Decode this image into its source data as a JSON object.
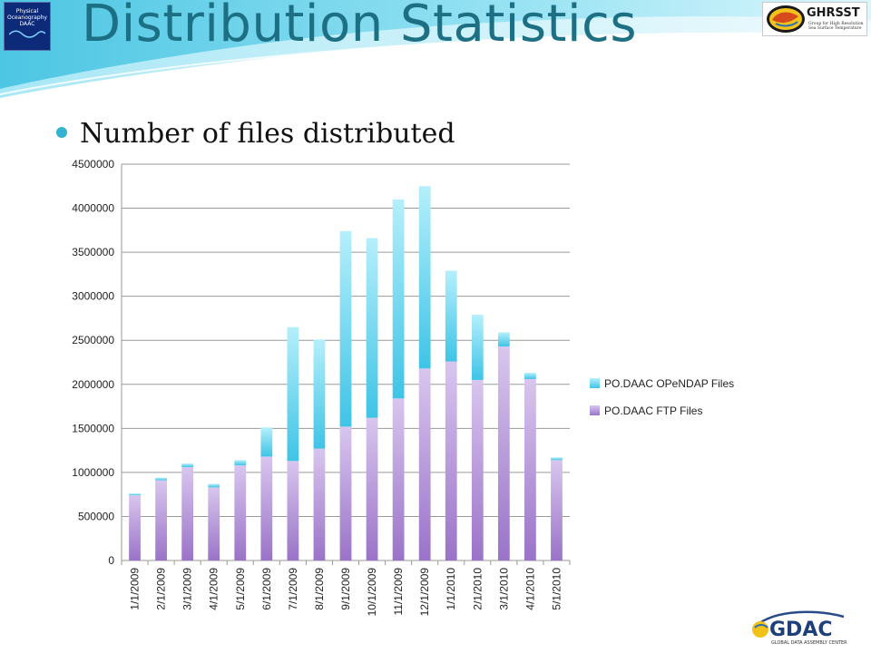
{
  "slide": {
    "title": "Distribution Statistics",
    "bullet": "Number of files distributed"
  },
  "logos": {
    "left_lines": [
      "Physical",
      "Oceanography",
      "DAAC"
    ],
    "right_name": "GHRSST",
    "right_sub": "Group for High Resolution Sea Surface Temperature",
    "bottom_name": "GDAC",
    "bottom_sub": "GLOBAL DATA ASSEMBLY CENTER"
  },
  "colors": {
    "title": "#1d6f83",
    "opendap_top": "#b5effb",
    "opendap_bottom": "#3fc4e6",
    "ftp_top": "#d8c6ee",
    "ftp_bottom": "#9a73c8",
    "grid": "#9a9a9a"
  },
  "chart_data": {
    "type": "bar",
    "stacked": true,
    "categories": [
      "1/1/2009",
      "2/1/2009",
      "3/1/2009",
      "4/1/2009",
      "5/1/2009",
      "6/1/2009",
      "7/1/2009",
      "8/1/2009",
      "9/1/2009",
      "10/1/2009",
      "11/1/2009",
      "12/1/2009",
      "1/1/2010",
      "2/1/2010",
      "3/1/2010",
      "4/1/2010",
      "5/1/2010"
    ],
    "series": [
      {
        "name": "PO.DAAC FTP Files",
        "values": [
          740000,
          910000,
          1060000,
          830000,
          1080000,
          1180000,
          1130000,
          1270000,
          1520000,
          1620000,
          1840000,
          2180000,
          2260000,
          2050000,
          2430000,
          2060000,
          1140000
        ]
      },
      {
        "name": "PO.DAAC OPeNDAP Files",
        "values": [
          20000,
          30000,
          40000,
          40000,
          60000,
          330000,
          1520000,
          1240000,
          2220000,
          2040000,
          2260000,
          2070000,
          1030000,
          740000,
          160000,
          70000,
          30000
        ]
      }
    ],
    "yticks": [
      0,
      500000,
      1000000,
      1500000,
      2000000,
      2500000,
      3000000,
      3500000,
      4000000,
      4500000
    ],
    "ylim": [
      0,
      4500000
    ],
    "xlabel": "",
    "ylabel": "",
    "grid": true,
    "legend": {
      "placement": "right",
      "entries": [
        "PO.DAAC OPeNDAP Files",
        "PO.DAAC FTP Files"
      ]
    }
  }
}
